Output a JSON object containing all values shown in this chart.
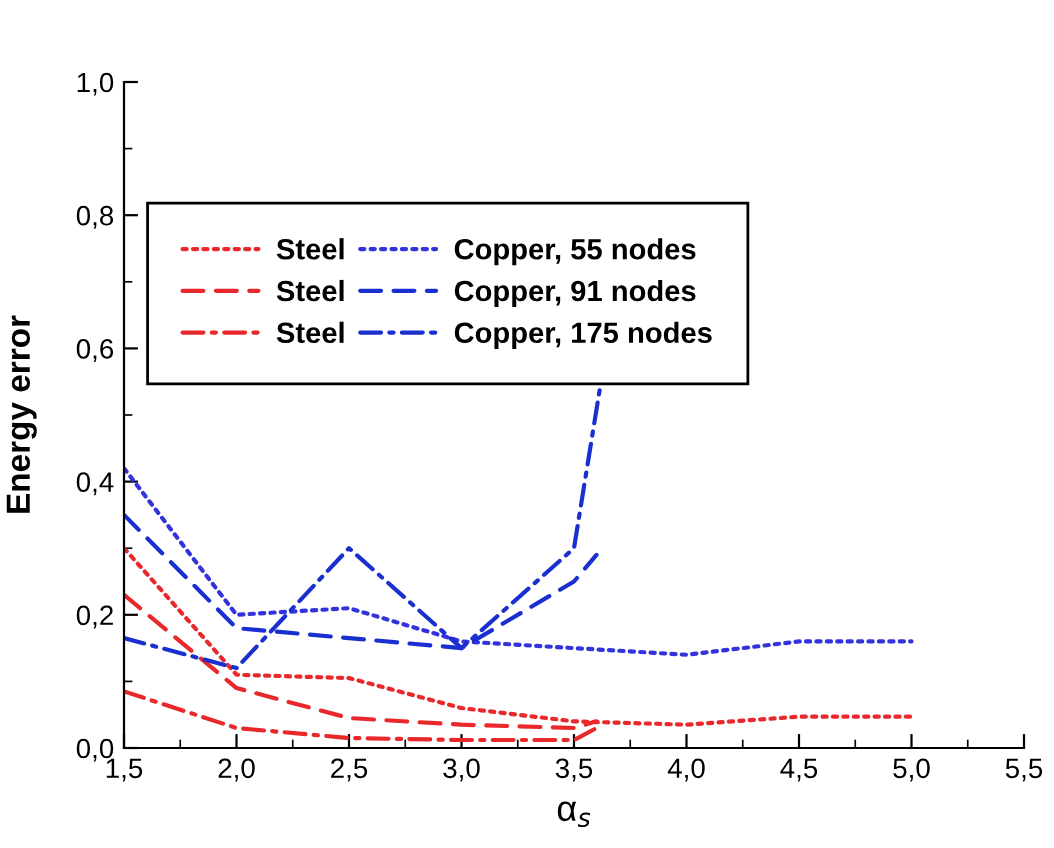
{
  "chart_data": {
    "type": "line",
    "xlabel": "α$_{s}$",
    "ylabel": "Energy error",
    "xlim": [
      1.5,
      5.5
    ],
    "ylim": [
      0,
      1.0
    ],
    "xticks": [
      {
        "value": 1.5,
        "label": "1,5"
      },
      {
        "value": 2.0,
        "label": "2,0"
      },
      {
        "value": 2.5,
        "label": "2,5"
      },
      {
        "value": 3.0,
        "label": "3,0"
      },
      {
        "value": 3.5,
        "label": "3,5"
      },
      {
        "value": 4.0,
        "label": "4,0"
      },
      {
        "value": 4.5,
        "label": "4,5"
      },
      {
        "value": 5.0,
        "label": "5,0"
      },
      {
        "value": 5.5,
        "label": "5,5"
      }
    ],
    "yticks": [
      {
        "value": 0,
        "label": "0,0"
      },
      {
        "value": 0.2,
        "label": "0,2"
      },
      {
        "value": 0.4,
        "label": "0,4"
      },
      {
        "value": 0.6,
        "label": "0,6"
      },
      {
        "value": 0.8,
        "label": "0,8"
      },
      {
        "value": 1.0,
        "label": "1,0"
      }
    ],
    "grid": false,
    "legend": "top left",
    "marker": "none",
    "series": [
      {
        "name": "Steel",
        "color": "#e8282b",
        "line_style": "dotted",
        "x": [
          1.5,
          2.0,
          2.5,
          3.0,
          3.5,
          4.0,
          4.5,
          5.0
        ],
        "values": [
          0.3,
          0.11,
          0.105,
          0.06,
          0.04,
          0.035,
          0.047,
          0.047
        ]
      },
      {
        "name": "Steel",
        "color": "#e8282b",
        "line_style": "dashed",
        "x": [
          1.5,
          2.0,
          2.5,
          3.0,
          3.5,
          3.6
        ],
        "values": [
          0.23,
          0.09,
          0.045,
          0.035,
          0.03,
          0.04
        ]
      },
      {
        "name": "Steel",
        "color": "#e8282b",
        "line_style": "dashdot",
        "x": [
          1.5,
          2.0,
          2.5,
          3.0,
          3.5,
          3.6
        ],
        "values": [
          0.085,
          0.03,
          0.015,
          0.012,
          0.012,
          0.03
        ]
      },
      {
        "name": "Copper, 55 nodes",
        "color": "#3333dd",
        "line_style": "dotted",
        "x": [
          1.5,
          2.0,
          2.5,
          3.0,
          3.5,
          4.0,
          4.5,
          5.0
        ],
        "values": [
          0.42,
          0.2,
          0.21,
          0.16,
          0.15,
          0.14,
          0.16,
          0.16
        ]
      },
      {
        "name": "Copper, 91 nodes",
        "color": "#1a2fd0",
        "line_style": "dashed",
        "x": [
          1.5,
          2.0,
          2.5,
          3.0,
          3.5,
          3.6
        ],
        "values": [
          0.35,
          0.18,
          0.165,
          0.15,
          0.25,
          0.29
        ]
      },
      {
        "name": "Copper, 175 nodes",
        "color": "#1a2fd0",
        "line_style": "dashdot",
        "x": [
          1.5,
          2.0,
          2.5,
          3.0,
          3.5,
          3.62
        ],
        "values": [
          0.165,
          0.12,
          0.3,
          0.15,
          0.3,
          0.55
        ]
      }
    ]
  }
}
